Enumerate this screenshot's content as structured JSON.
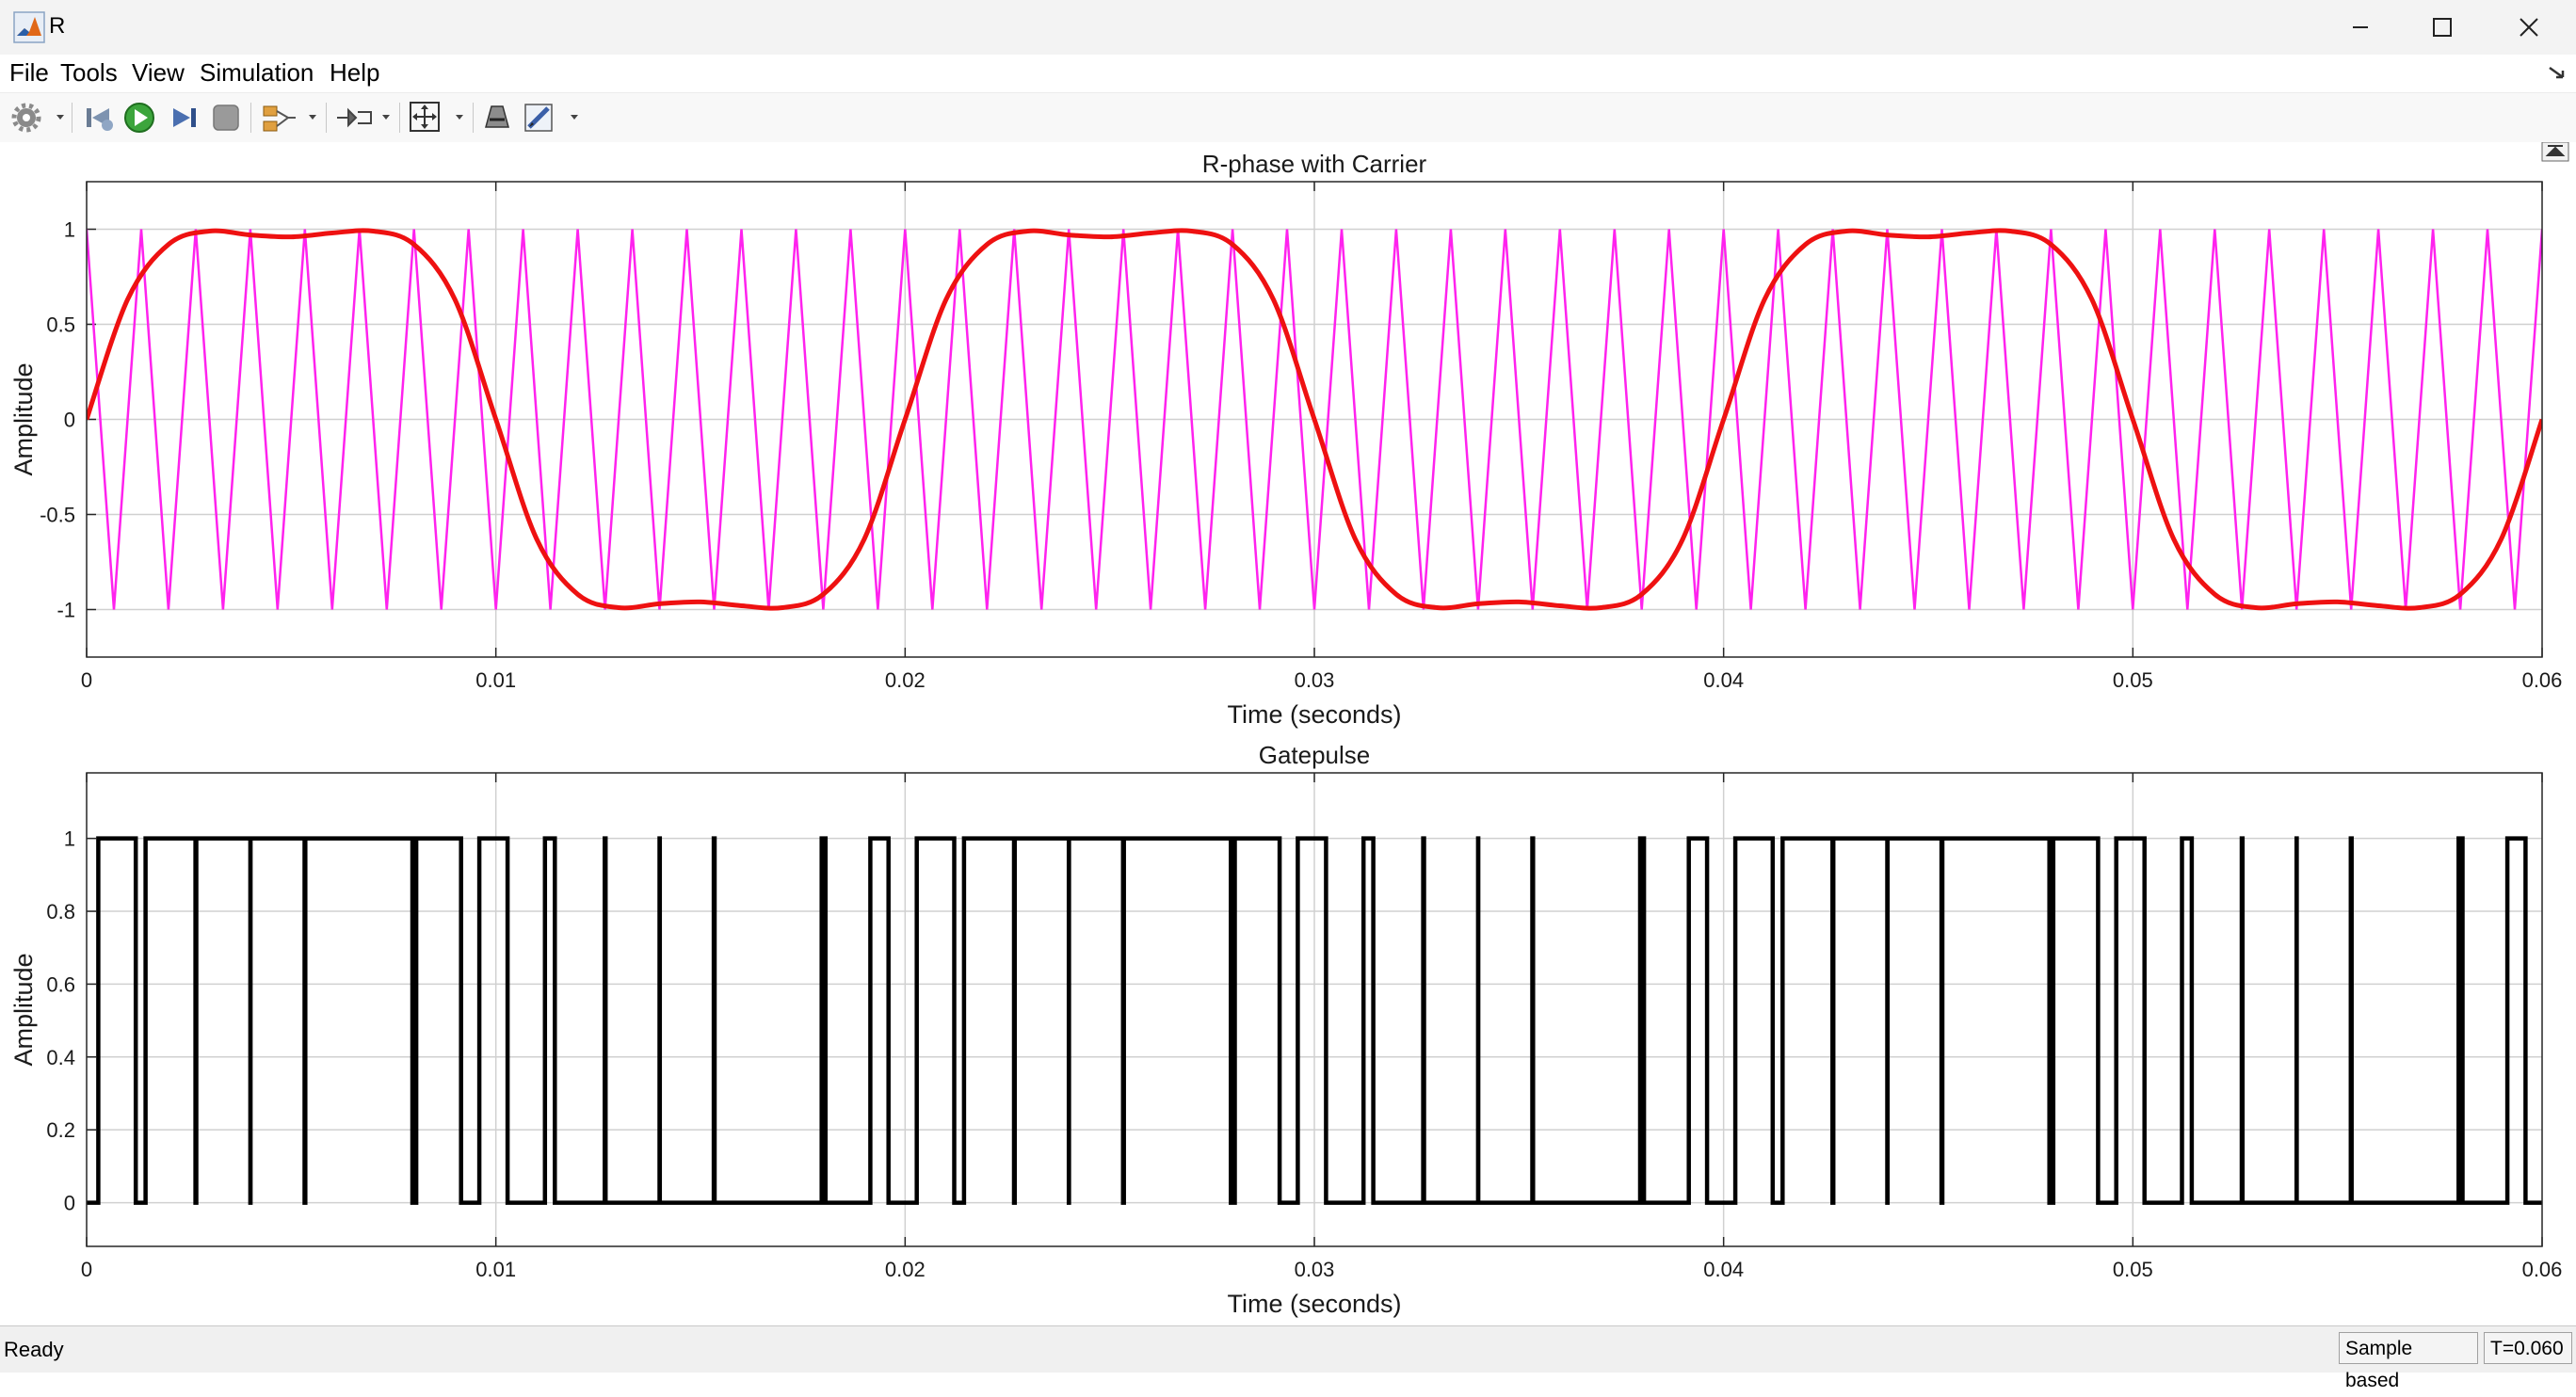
{
  "window": {
    "title": "R"
  },
  "menu": {
    "file": "File",
    "tools": "Tools",
    "view": "View",
    "simulation": "Simulation",
    "help": "Help"
  },
  "toolbar": {
    "icons": [
      "gear-icon",
      "step-back-icon",
      "run-icon",
      "step-forward-icon",
      "stop-icon",
      "signal-select-icon",
      "triggers-icon",
      "zoom-fit-icon",
      "style-icon",
      "measurements-icon"
    ]
  },
  "colors": {
    "sine": "#ee1111",
    "carrier": "#ff22ee",
    "gate": "#000000",
    "grid": "#d0d0d0"
  },
  "status": {
    "text": "Ready",
    "mode": "Sample based",
    "time": "T=0.060"
  },
  "chart_data": [
    {
      "type": "line",
      "title": "R-phase with Carrier",
      "xlabel": "Time (seconds)",
      "ylabel": "Amplitude",
      "xlim": [
        0,
        0.06
      ],
      "ylim": [
        -1.25,
        1.25
      ],
      "xticks": [
        "0",
        "0.01",
        "0.02",
        "0.03",
        "0.04",
        "0.05",
        "0.06"
      ],
      "yticks": [
        "1",
        "0.5",
        "0",
        "-0.5",
        "-1"
      ],
      "grid": true,
      "series": [
        {
          "signal": "R-phase reference (sine with 3rd harmonic)",
          "color": "#ee1111",
          "frequency_hz": 50,
          "x": [
            0,
            0.001,
            0.002,
            0.003,
            0.004,
            0.005,
            0.006,
            0.007,
            0.008,
            0.009,
            0.01,
            0.011,
            0.012,
            0.013,
            0.014,
            0.015,
            0.016,
            0.017,
            0.018,
            0.019,
            0.02,
            0.021,
            0.022,
            0.023,
            0.024,
            0.025,
            0.026,
            0.027,
            0.028,
            0.029,
            0.03,
            0.031,
            0.032,
            0.033,
            0.034,
            0.035,
            0.036,
            0.037,
            0.038,
            0.039,
            0.04,
            0.041,
            0.042,
            0.043,
            0.044,
            0.045,
            0.046,
            0.047,
            0.048,
            0.049,
            0.05,
            0.051,
            0.052,
            0.053,
            0.054,
            0.055,
            0.056,
            0.057,
            0.058,
            0.059,
            0.06
          ],
          "y": [
            0,
            0.63,
            0.92,
            0.99,
            0.97,
            0.96,
            0.98,
            0.99,
            0.92,
            0.63,
            0,
            -0.63,
            -0.92,
            -0.99,
            -0.97,
            -0.96,
            -0.98,
            -0.99,
            -0.92,
            -0.63,
            0,
            0.63,
            0.92,
            0.99,
            0.97,
            0.96,
            0.98,
            0.99,
            0.92,
            0.63,
            0,
            -0.63,
            -0.92,
            -0.99,
            -0.97,
            -0.96,
            -0.98,
            -0.99,
            -0.92,
            -0.63,
            0,
            0.63,
            0.92,
            0.99,
            0.97,
            0.96,
            0.98,
            0.99,
            0.92,
            0.63,
            0,
            -0.63,
            -0.92,
            -0.99,
            -0.97,
            -0.96,
            -0.98,
            -0.99,
            -0.92,
            -0.63,
            0
          ]
        },
        {
          "signal": "Triangular carrier",
          "color": "#ff22ee",
          "frequency_hz": 750,
          "min": -1,
          "max": 1
        }
      ]
    },
    {
      "type": "line",
      "title": "Gatepulse",
      "xlabel": "Time (seconds)",
      "ylabel": "Amplitude",
      "xlim": [
        0,
        0.06
      ],
      "ylim": [
        -0.12,
        1.18
      ],
      "xticks": [
        "0",
        "0.01",
        "0.02",
        "0.03",
        "0.04",
        "0.05",
        "0.06"
      ],
      "yticks": [
        "1",
        "0.8",
        "0.6",
        "0.4",
        "0.2",
        "0"
      ],
      "grid": true,
      "series": [
        {
          "signal": "Gate pulse (sine > carrier)",
          "color": "#000000",
          "values": [
            0,
            1
          ]
        }
      ]
    }
  ]
}
